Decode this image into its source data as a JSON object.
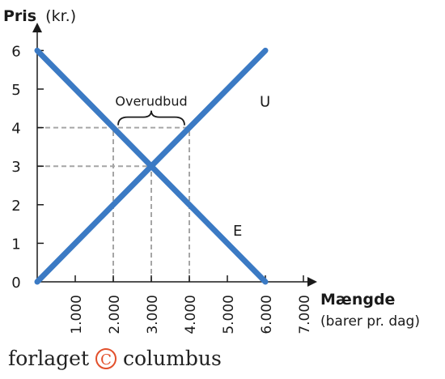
{
  "chart_data": {
    "type": "line",
    "title": "",
    "ylabel_bold": "Pris",
    "ylabel_unit": "(kr.)",
    "xlabel_bold": "Mængde",
    "xlabel_unit": "(barer pr. dag)",
    "xlim": [
      0,
      7000
    ],
    "ylim": [
      0,
      6
    ],
    "x_ticks": [
      1000,
      2000,
      3000,
      4000,
      5000,
      6000,
      7000
    ],
    "x_tick_labels": [
      "1.000",
      "2.000",
      "3.000",
      "4.000",
      "5.000",
      "6.000",
      "7.000"
    ],
    "y_ticks": [
      0,
      1,
      2,
      3,
      4,
      5,
      6
    ],
    "y_tick_labels": [
      "0",
      "1",
      "2",
      "3",
      "4",
      "5",
      "6"
    ],
    "series": [
      {
        "name": "U",
        "color": "#3b7ac4",
        "points": [
          [
            0,
            0
          ],
          [
            6000,
            6
          ]
        ]
      },
      {
        "name": "E",
        "color": "#3b7ac4",
        "points": [
          [
            0,
            6
          ],
          [
            6000,
            0
          ]
        ]
      }
    ],
    "reference_lines": [
      {
        "y": 4,
        "x_from": 0,
        "x_to": 4000
      },
      {
        "y": 3,
        "x_from": 0,
        "x_to": 3000
      },
      {
        "x": 2000,
        "y_from": 0,
        "y_to": 4
      },
      {
        "x": 3000,
        "y_from": 0,
        "y_to": 3
      },
      {
        "x": 4000,
        "y_from": 0,
        "y_to": 4
      }
    ],
    "annotation": {
      "text": "Overudbud",
      "x_from": 2000,
      "x_to": 4000,
      "y": 4
    },
    "grid": false
  },
  "footer": {
    "brand_left": "forlaget",
    "brand_symbol": "C",
    "brand_right": "columbus"
  },
  "colors": {
    "line": "#3b7ac4",
    "dashed": "#a6a6a6",
    "axis": "#1a1a1a",
    "brand_accent": "#e2502c"
  }
}
